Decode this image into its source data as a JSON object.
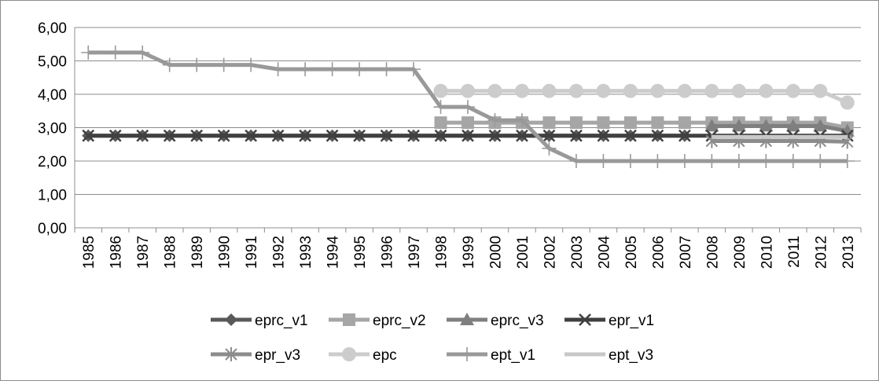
{
  "chart_data": {
    "type": "line",
    "title": "",
    "xlabel": "",
    "ylabel": "",
    "ylim": [
      0,
      6
    ],
    "y_ticks": [
      "0,00",
      "1,00",
      "2,00",
      "3,00",
      "4,00",
      "5,00",
      "6,00"
    ],
    "grid": "horizontal",
    "legend_position": "bottom",
    "categories": [
      "1985",
      "1986",
      "1987",
      "1988",
      "1989",
      "1990",
      "1991",
      "1992",
      "1993",
      "1994",
      "1995",
      "1996",
      "1997",
      "1998",
      "1999",
      "2000",
      "2001",
      "2002",
      "2003",
      "2004",
      "2005",
      "2006",
      "2007",
      "2008",
      "2009",
      "2010",
      "2011",
      "2012",
      "2013"
    ],
    "series": [
      {
        "name": "eprc_v1",
        "color": "#595959",
        "marker": "diamond",
        "values": [
          2.76,
          2.76,
          2.76,
          2.76,
          2.76,
          2.76,
          2.76,
          2.76,
          2.76,
          2.76,
          2.76,
          2.76,
          2.76,
          2.76,
          2.76,
          2.76,
          2.76,
          2.76,
          2.76,
          2.76,
          2.76,
          2.76,
          2.76,
          null,
          null,
          null,
          null,
          null,
          null
        ]
      },
      {
        "name": "eprc_v2",
        "color": "#a6a6a6",
        "marker": "square",
        "values": [
          null,
          null,
          null,
          null,
          null,
          null,
          null,
          null,
          null,
          null,
          null,
          null,
          null,
          3.15,
          3.15,
          3.15,
          3.15,
          3.15,
          3.15,
          3.15,
          3.15,
          3.15,
          3.15,
          3.15,
          3.15,
          3.15,
          3.15,
          3.15,
          3.0
        ]
      },
      {
        "name": "eprc_v3",
        "color": "#7f7f7f",
        "marker": "triangle",
        "values": [
          null,
          null,
          null,
          null,
          null,
          null,
          null,
          null,
          null,
          null,
          null,
          null,
          null,
          null,
          null,
          null,
          null,
          null,
          null,
          null,
          null,
          null,
          null,
          3.05,
          3.05,
          3.05,
          3.05,
          3.05,
          2.9
        ]
      },
      {
        "name": "epr_v1",
        "color": "#404040",
        "marker": "x",
        "values": [
          2.76,
          2.76,
          2.76,
          2.76,
          2.76,
          2.76,
          2.76,
          2.76,
          2.76,
          2.76,
          2.76,
          2.76,
          2.76,
          2.76,
          2.76,
          2.76,
          2.76,
          2.76,
          2.76,
          2.76,
          2.76,
          2.76,
          2.76,
          2.76,
          2.76,
          2.76,
          2.76,
          2.76,
          2.76
        ]
      },
      {
        "name": "epr_v3",
        "color": "#8c8c8c",
        "marker": "star",
        "values": [
          null,
          null,
          null,
          null,
          null,
          null,
          null,
          null,
          null,
          null,
          null,
          null,
          null,
          null,
          null,
          null,
          null,
          null,
          null,
          null,
          null,
          null,
          null,
          2.6,
          2.6,
          2.6,
          2.6,
          2.6,
          2.58
        ]
      },
      {
        "name": "epc",
        "color": "#cccccc",
        "marker": "circle",
        "values": [
          null,
          null,
          null,
          null,
          null,
          null,
          null,
          null,
          null,
          null,
          null,
          null,
          null,
          4.1,
          4.1,
          4.1,
          4.1,
          4.1,
          4.1,
          4.1,
          4.1,
          4.1,
          4.1,
          4.1,
          4.1,
          4.1,
          4.1,
          4.1,
          3.75
        ]
      },
      {
        "name": "ept_v1",
        "color": "#999999",
        "marker": "plus",
        "values": [
          5.25,
          5.25,
          5.25,
          4.88,
          4.88,
          4.88,
          4.88,
          4.75,
          4.75,
          4.75,
          4.75,
          4.75,
          4.75,
          3.62,
          3.62,
          3.22,
          3.22,
          2.38,
          2.0,
          2.0,
          2.0,
          2.0,
          2.0,
          2.0,
          2.0,
          2.0,
          2.0,
          2.0,
          2.0
        ]
      },
      {
        "name": "ept_v3",
        "color": "#c8c8c8",
        "marker": "none",
        "values": [
          null,
          null,
          null,
          null,
          null,
          null,
          null,
          null,
          null,
          null,
          null,
          null,
          null,
          null,
          null,
          null,
          null,
          null,
          null,
          null,
          null,
          null,
          null,
          2.72,
          2.72,
          2.72,
          2.72,
          2.72,
          2.72
        ]
      }
    ]
  }
}
